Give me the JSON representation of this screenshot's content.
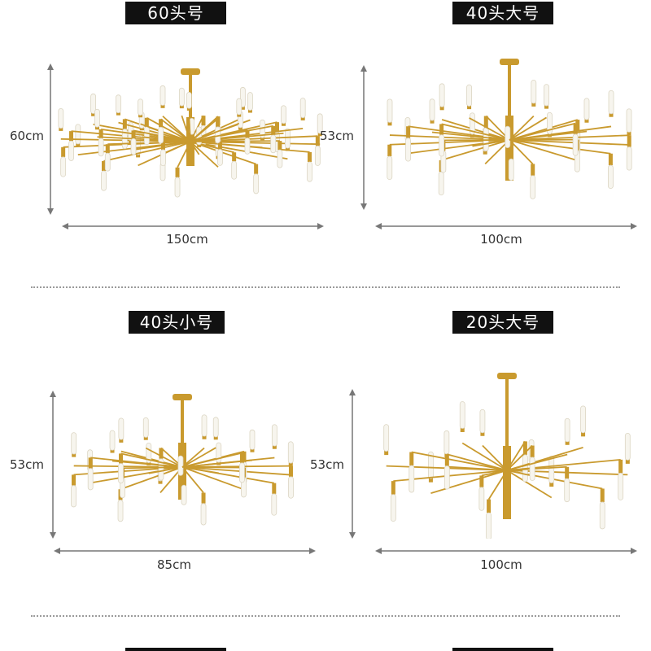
{
  "colors": {
    "gold": "#c99a2e",
    "bulb": "#f7f5ee",
    "label_bg": "#111111"
  },
  "products": [
    {
      "label": "60头号",
      "height": "60cm",
      "width": "150cm"
    },
    {
      "label": "40头大号",
      "height": "53cm",
      "width": "100cm"
    },
    {
      "label": "40头小号",
      "height": "53cm",
      "width": "85cm"
    },
    {
      "label": "20头大号",
      "height": "53cm",
      "width": "100cm"
    }
  ]
}
